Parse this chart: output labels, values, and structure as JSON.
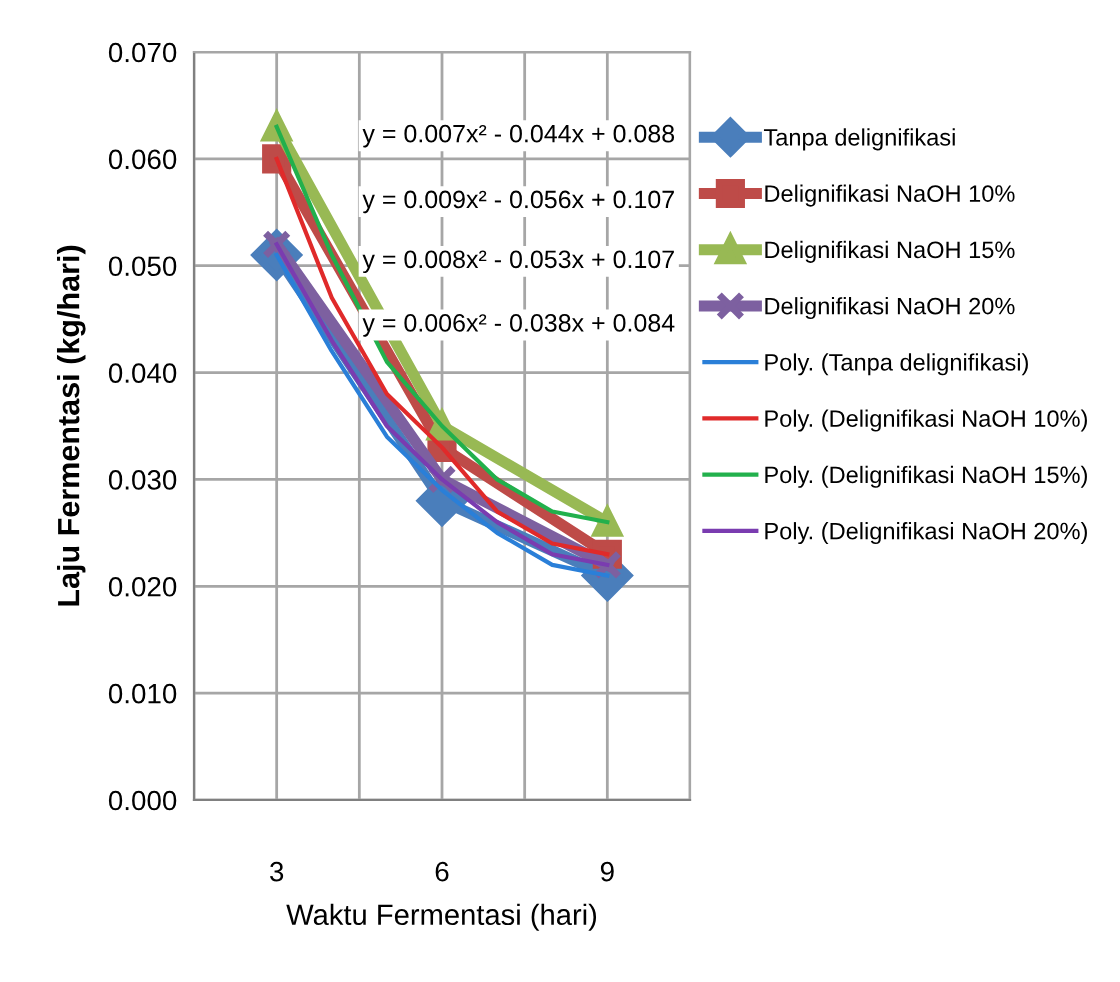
{
  "chart_data": {
    "type": "line",
    "xlabel": "Waktu Fermentasi (hari)",
    "ylabel": "Laju Fermentasi (kg/hari)",
    "x": [
      3,
      6,
      9
    ],
    "xlim": [
      1.5,
      10.5
    ],
    "xticks": [
      {
        "value": 1.5,
        "label": null
      },
      3,
      {
        "value": 4.5,
        "label": null
      },
      6,
      {
        "value": 7.5,
        "label": null
      },
      9,
      {
        "value": 10.5,
        "label": null
      }
    ],
    "ylim": [
      0,
      0.07
    ],
    "yticks": [
      {
        "value": 0,
        "label": "0.000"
      },
      {
        "value": 0.01,
        "label": "0.010"
      },
      {
        "value": 0.02,
        "label": "0.020"
      },
      {
        "value": 0.03,
        "label": "0.030"
      },
      {
        "value": 0.04,
        "label": "0.040"
      },
      {
        "value": 0.05,
        "label": "0.050"
      },
      {
        "value": 0.06,
        "label": "0.060"
      },
      {
        "value": 0.07,
        "label": "0.070"
      }
    ],
    "grid": true,
    "legend": "right",
    "series": [
      {
        "name": "Tanpa delignifikasi",
        "color": "#4a7ebb",
        "marker": "diamond",
        "values": [
          0.051,
          0.028,
          0.021
        ]
      },
      {
        "name": "Delignifikasi NaOH 10%",
        "color": "#be4b48",
        "marker": "square",
        "values": [
          0.06,
          0.033,
          0.023
        ]
      },
      {
        "name": "Delignifikasi NaOH 15%",
        "color": "#98b954",
        "marker": "triangle",
        "values": [
          0.063,
          0.035,
          0.026
        ]
      },
      {
        "name": "Delignifikasi NaOH 20%",
        "color": "#7d60a0",
        "marker": "cross",
        "values": [
          0.052,
          0.03,
          0.022
        ]
      },
      {
        "name": "Poly. (Tanpa delignifikasi)",
        "color": "#2a7fd8",
        "marker": "none",
        "x": [
          3,
          4,
          5,
          6,
          7,
          8,
          9
        ],
        "values": [
          0.051,
          0.042,
          0.034,
          0.029,
          0.025,
          0.022,
          0.021
        ]
      },
      {
        "name": "Poly. (Delignifikasi NaOH 10%)",
        "color": "#e02a2a",
        "marker": "none",
        "x": [
          3,
          4,
          5,
          6,
          7,
          8,
          9
        ],
        "values": [
          0.06,
          0.047,
          0.038,
          0.033,
          0.027,
          0.024,
          0.023
        ]
      },
      {
        "name": "Poly. (Delignifikasi NaOH 15%)",
        "color": "#22b04c",
        "marker": "none",
        "x": [
          3,
          4,
          5,
          6,
          7,
          8,
          9
        ],
        "values": [
          0.063,
          0.051,
          0.041,
          0.035,
          0.03,
          0.027,
          0.026
        ]
      },
      {
        "name": "Poly. (Delignifikasi NaOH 20%)",
        "color": "#7a3cb0",
        "marker": "none",
        "x": [
          3,
          4,
          5,
          6,
          7,
          8,
          9
        ],
        "values": [
          0.052,
          0.043,
          0.035,
          0.03,
          0.026,
          0.023,
          0.022
        ]
      }
    ],
    "annotations": [
      "y = 0.007x² - 0.044x + 0.088",
      "y = 0.009x² - 0.056x + 0.107",
      "y = 0.008x² - 0.053x + 0.107",
      "y = 0.006x² - 0.038x + 0.084"
    ]
  }
}
